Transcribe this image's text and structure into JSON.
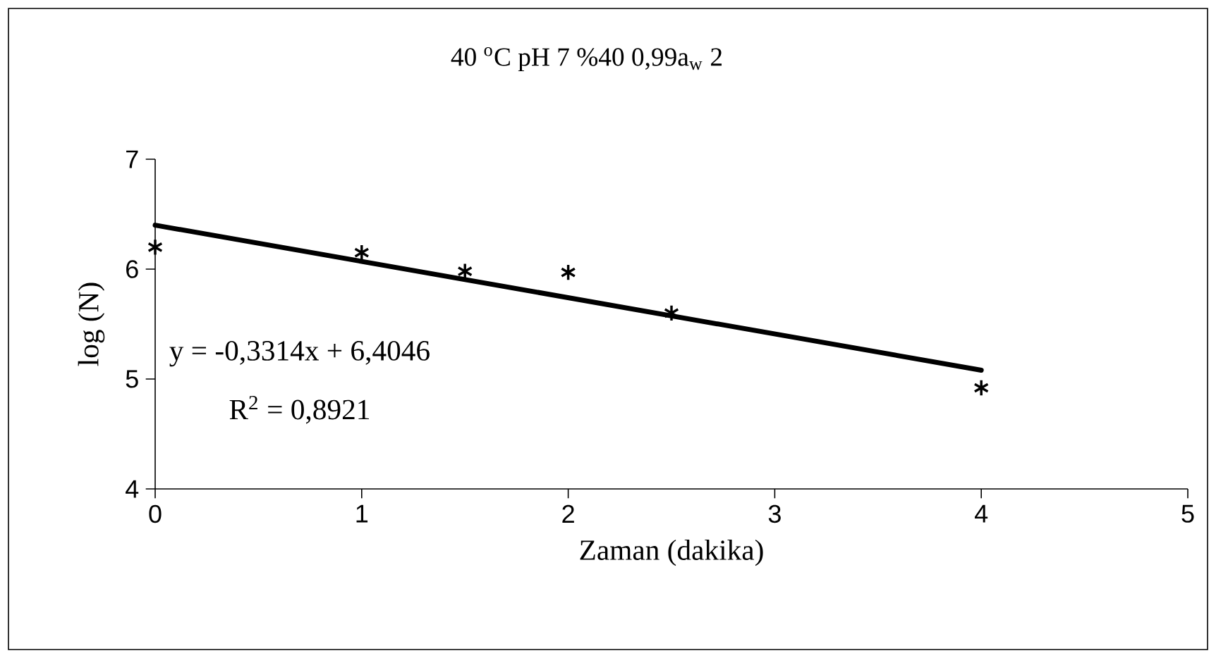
{
  "chart_data": {
    "type": "scatter",
    "title": "40 $^{o}$C pH 7 %40 0,99a$_{w}$ 2",
    "xlabel": "Zaman (dakika)",
    "ylabel": "log (N)",
    "x": [
      0,
      1,
      1.5,
      2,
      2.5,
      4
    ],
    "series": [
      {
        "color": "#000000",
        "marker": "cross",
        "values": [
          6.2,
          6.15,
          5.98,
          5.97,
          5.6,
          4.92
        ]
      },
      {
        "type": "line",
        "color": "#000000",
        "marker": "none",
        "line_style": "solid",
        "x": [
          0,
          4
        ],
        "values": [
          6.4,
          5.08
        ]
      }
    ],
    "annotations": [
      "y = -0,3314x + 6,4046",
      "R$^{2}$ = 0,8921"
    ],
    "xlim": [
      0,
      5
    ],
    "ylim": [
      4,
      7
    ],
    "xticks": [
      0,
      1,
      2,
      3,
      4,
      5
    ],
    "yticks": [
      4,
      5,
      6,
      7
    ],
    "grid": false
  }
}
